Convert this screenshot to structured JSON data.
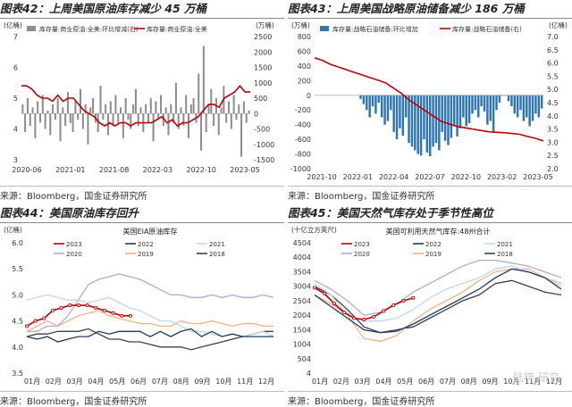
{
  "colors": {
    "red": "#c00000",
    "gray": "#8c8c8c",
    "blue": "#2e75b6",
    "navy": "#1f3864",
    "lightblue": "#bdd7ee",
    "purple": "#b4a7d6",
    "orange": "#f4b183",
    "dark": "#404040"
  },
  "panels": [
    {
      "title": "图表42：上周美国原油库存减少 45 万桶",
      "source": "来源：Bloomberg，国金证券研究所"
    },
    {
      "title": "图表43：上周美国战略原油储备减少 186 万桶",
      "source": "来源：Bloomberg，国金证券研究所"
    },
    {
      "title": "图表44：美国原油库存回升",
      "source": "来源：Bloomberg，国金证券研究所"
    },
    {
      "title": "图表45：美国天然气库存处于季节性高位",
      "source": "来源：Bloomberg，国金证券研究所"
    }
  ],
  "watermark": "陆梓  研究",
  "chart_data": [
    {
      "type": "bar",
      "title": "",
      "ylabel_left": "(亿桶)",
      "ylabel_right": "(万桶)",
      "ylim_left": [
        3,
        7
      ],
      "ylim_right": [
        -1500,
        2500
      ],
      "yticks_left": [
        "7",
        "6",
        "5",
        "4",
        "3"
      ],
      "yticks_right": [
        "2500",
        "2000",
        "1500",
        "1000",
        "500",
        "0",
        "-500",
        "-1000",
        "-1500"
      ],
      "xticks": [
        "2020-06",
        "2021-01",
        "2021-08",
        "2022-03",
        "2022-10",
        "2023-05"
      ],
      "series": [
        {
          "name": "库存量:商业原油:全美:环比增减(右)",
          "kind": "bar",
          "axis": "right",
          "values": [
            300,
            -600,
            500,
            -400,
            200,
            -800,
            400,
            -300,
            600,
            -500,
            100,
            -700,
            300,
            -200,
            500,
            -900,
            200,
            -400,
            700,
            -300,
            -600,
            400,
            -200,
            800,
            -500,
            300,
            -1000,
            200,
            500,
            -300,
            -600,
            900,
            -200,
            300,
            -700,
            400,
            -400,
            600,
            -300,
            200,
            -800,
            500,
            -200,
            -500,
            300,
            800,
            -400,
            200,
            -600,
            300,
            -300,
            500,
            -900,
            400,
            -200,
            600,
            -400,
            200,
            -700,
            300,
            -300,
            1000,
            -500,
            200,
            -400,
            600,
            -800,
            300,
            500,
            -300,
            1300,
            -1200,
            2200,
            -600,
            300,
            800,
            -400,
            500,
            -700,
            200,
            900,
            -300,
            400,
            -500,
            600,
            -200,
            300,
            -1400,
            400,
            -300,
            100
          ]
        },
        {
          "name": "库存量:商业原油:全美",
          "kind": "line",
          "axis": "left",
          "values": [
            5.4,
            5.4,
            5.3,
            5.1,
            5.0,
            5.0,
            4.9,
            5.1,
            4.9,
            5.0,
            5.0,
            4.8,
            4.6,
            4.5,
            4.4,
            4.2,
            4.1,
            4.2,
            4.1,
            4.2,
            4.2,
            4.1,
            4.2,
            4.2,
            4.2,
            4.2,
            4.3,
            4.4,
            4.2,
            4.3,
            4.1,
            4.2,
            4.2,
            4.3,
            4.4,
            4.6,
            4.8,
            4.8,
            4.7,
            5.0,
            5.1,
            5.2,
            5.4,
            5.2,
            5.2
          ]
        }
      ]
    },
    {
      "type": "bar",
      "title": "",
      "ylabel_left": "(万桶)",
      "ylabel_right": "(亿桶)",
      "ylim_left": [
        -1000,
        800
      ],
      "ylim_right": [
        2.0,
        7.0
      ],
      "yticks_left": [
        "800",
        "600",
        "400",
        "200",
        "0",
        "-200",
        "-400",
        "-600",
        "-800",
        "-1000"
      ],
      "yticks_right": [
        "7.0",
        "6.5",
        "6.0",
        "5.5",
        "5.0",
        "4.5",
        "4.0",
        "3.5",
        "3.0",
        "2.5",
        "2.0"
      ],
      "xticks": [
        "2021-10",
        "2022-01",
        "2022-04",
        "2022-07",
        "2022-10",
        "2023-02",
        "2023-05"
      ],
      "series": [
        {
          "name": "库存量:战略石油储备:环比增加",
          "kind": "bar",
          "axis": "left",
          "values": [
            -50,
            -120,
            -200,
            -300,
            -150,
            -250,
            -100,
            -300,
            -400,
            -350,
            -200,
            -500,
            -600,
            -450,
            -550,
            -300,
            -650,
            -700,
            -750,
            -800,
            -820,
            -600,
            -780,
            -830,
            -700,
            -650,
            -750,
            -500,
            -620,
            -680,
            -580,
            -420,
            -560,
            -450,
            -300,
            -420,
            -380,
            -250,
            -200,
            -300,
            -150,
            -220,
            -400,
            -350,
            -500,
            -200,
            -100,
            0,
            0,
            -80,
            -150,
            -250,
            -300,
            -200,
            -350,
            -300,
            -420,
            -350,
            -250,
            -300,
            -180
          ]
        },
        {
          "name": "库存量:战略石油储备(右)",
          "kind": "line",
          "axis": "right",
          "values": [
            6.2,
            6.1,
            5.95,
            5.85,
            5.75,
            5.65,
            5.55,
            5.45,
            5.35,
            5.25,
            5.05,
            4.85,
            4.6,
            4.4,
            4.2,
            4.0,
            3.8,
            3.7,
            3.6,
            3.55,
            3.5,
            3.45,
            3.4,
            3.38,
            3.36,
            3.33,
            3.3,
            3.22,
            3.15,
            3.05
          ]
        }
      ]
    },
    {
      "type": "line",
      "title": "美国EIA原油库存",
      "ylabel": "(亿桶)",
      "ylim": [
        3.5,
        6.0
      ],
      "yticks": [
        "6.0",
        "5.5",
        "5.0",
        "4.5",
        "4.0",
        "3.5"
      ],
      "xticks": [
        "01月",
        "02月",
        "03月",
        "04月",
        "05月",
        "06月",
        "07月",
        "08月",
        "09月",
        "10月",
        "11月",
        "12月"
      ],
      "series": [
        {
          "name": "2023",
          "values": [
            4.4,
            4.5,
            4.55,
            4.7,
            4.75,
            4.8,
            4.8,
            4.8,
            4.75,
            4.7,
            4.65,
            4.6,
            4.6
          ]
        },
        {
          "name": "2022",
          "values": [
            4.2,
            4.15,
            4.2,
            4.1,
            4.15,
            4.2,
            4.2,
            4.3,
            4.25,
            4.3,
            4.3,
            4.3,
            4.2,
            4.3,
            4.2,
            4.3,
            4.35,
            4.2,
            4.3,
            4.2,
            4.25,
            4.2,
            4.2,
            4.2,
            4.2
          ]
        },
        {
          "name": "2021",
          "values": [
            4.9,
            4.95,
            5.0,
            4.95,
            4.9,
            4.9,
            4.85,
            4.9,
            4.95,
            4.85,
            4.75,
            4.7,
            4.6,
            4.5,
            4.5,
            4.4,
            4.3,
            4.3,
            4.25,
            4.2,
            4.25,
            4.2,
            4.25,
            4.3,
            4.2
          ]
        },
        {
          "name": "2020",
          "values": [
            4.3,
            4.3,
            4.4,
            4.4,
            4.6,
            4.9,
            5.2,
            5.3,
            5.35,
            5.4,
            5.35,
            5.3,
            5.2,
            5.1,
            5.0,
            5.0,
            4.95,
            4.95,
            5.0,
            4.95,
            5.0,
            4.95,
            4.95,
            5.0,
            4.95
          ]
        },
        {
          "name": "2019",
          "values": [
            4.3,
            4.4,
            4.5,
            4.4,
            4.5,
            4.6,
            4.65,
            4.7,
            4.6,
            4.55,
            4.5,
            4.45,
            4.45,
            4.4,
            4.4,
            4.5,
            4.45,
            4.45,
            4.5,
            4.45,
            4.4,
            4.45,
            4.45,
            4.4,
            4.4
          ]
        },
        {
          "name": "2018",
          "values": [
            4.2,
            4.25,
            4.25,
            4.3,
            4.3,
            4.3,
            4.35,
            4.25,
            4.15,
            4.15,
            4.1,
            4.1,
            4.05,
            4.0,
            4.0,
            4.0,
            3.95,
            4.0,
            4.05,
            4.1,
            4.15,
            4.2,
            4.25,
            4.3,
            4.3
          ]
        }
      ]
    },
    {
      "type": "line",
      "title": "美国可利用天然气库存:48州合计",
      "ylabel": "(十亿立方英尺)",
      "ylim": [
        4,
        4504
      ],
      "yticks": [
        "4504",
        "4004",
        "3504",
        "3004",
        "2504",
        "2004",
        "1504",
        "1004",
        "504",
        "4"
      ],
      "xticks": [
        "01月",
        "02月",
        "03月",
        "04月",
        "05月",
        "06月",
        "07月",
        "08月",
        "09月",
        "10月",
        "11月",
        "12月"
      ],
      "series": [
        {
          "name": "2023",
          "values": [
            2950,
            2750,
            2400,
            2100,
            1900,
            1850,
            1950,
            2150,
            2350,
            2500,
            2600
          ]
        },
        {
          "name": "2022",
          "values": [
            2700,
            2300,
            1900,
            1500,
            1400,
            1450,
            1700,
            2000,
            2300,
            2600,
            2900,
            3300,
            3600,
            3500,
            3300,
            2900
          ]
        },
        {
          "name": "2021",
          "values": [
            3100,
            2700,
            2000,
            1800,
            1800,
            1900,
            2200,
            2600,
            2900,
            3100,
            3300,
            3600,
            3700,
            3500,
            3300,
            3000
          ]
        },
        {
          "name": "2020",
          "values": [
            3200,
            2900,
            2500,
            2000,
            2100,
            2400,
            2800,
            3100,
            3400,
            3700,
            3900,
            3900,
            3800,
            3700,
            3500,
            3300
          ]
        },
        {
          "name": "2019",
          "values": [
            2700,
            2400,
            2000,
            1200,
            1100,
            1300,
            1800,
            2200,
            2500,
            2800,
            3200,
            3500,
            3600,
            3600,
            3300,
            3100
          ]
        },
        {
          "name": "2018",
          "values": [
            3000,
            2700,
            2200,
            1600,
            1400,
            1500,
            1600,
            1900,
            2200,
            2500,
            2700,
            3100,
            3200,
            3000,
            2800,
            2700
          ]
        }
      ]
    }
  ]
}
